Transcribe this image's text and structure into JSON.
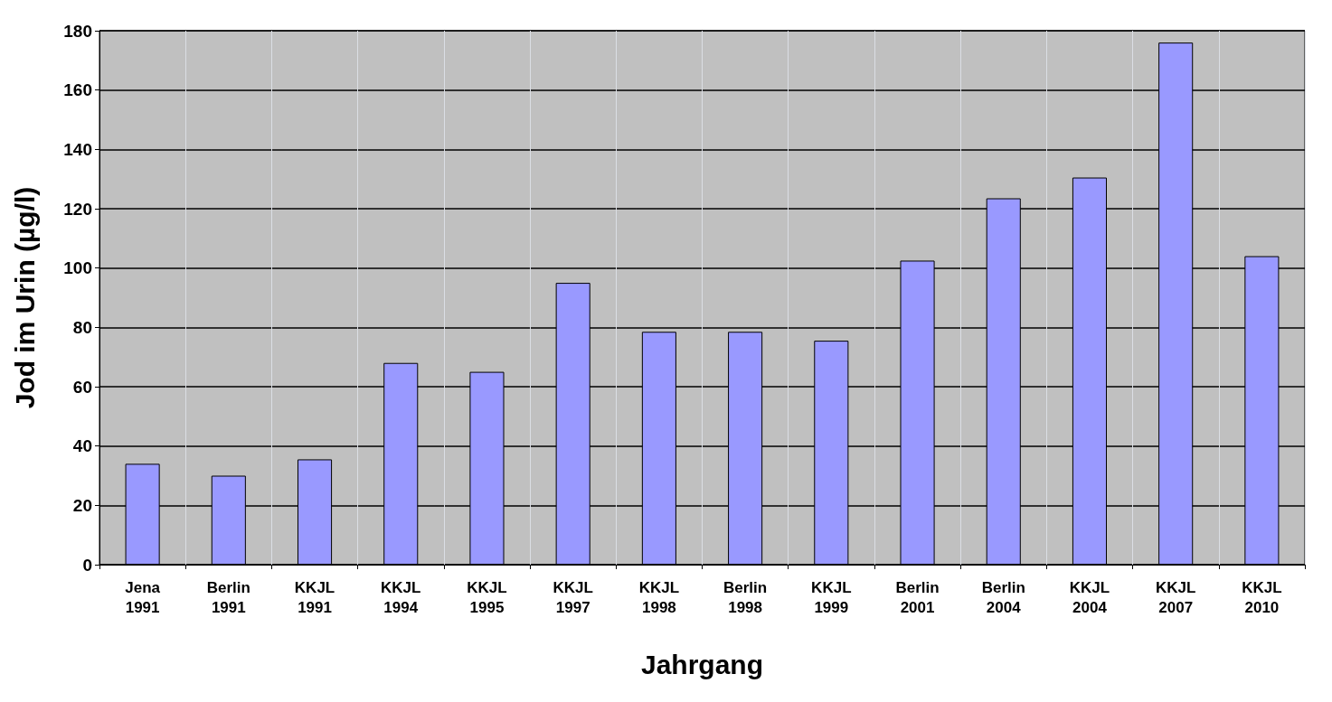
{
  "chart_data": {
    "type": "bar",
    "xlabel": "Jahrgang",
    "ylabel": "Jod im Urin (µg/l)",
    "categories": [
      "Jena\n1991",
      "Berlin\n1991",
      "KKJL\n1991",
      "KKJL\n1994",
      "KKJL\n1995",
      "KKJL\n1997",
      "KKJL\n1998",
      "Berlin\n1998",
      "KKJL\n1999",
      "Berlin\n2001",
      "Berlin\n2004",
      "KKJL\n2004",
      "KKJL\n2007",
      "KKJL\n2010"
    ],
    "values": [
      34,
      30,
      35.5,
      68,
      65,
      95,
      78.5,
      78.5,
      75.5,
      102.5,
      123.5,
      130.5,
      176,
      104
    ],
    "color": "#9999ff",
    "ylim": [
      0,
      180
    ],
    "yticks": [
      0,
      20,
      40,
      60,
      80,
      100,
      120,
      140,
      160,
      180
    ],
    "grid": true
  }
}
